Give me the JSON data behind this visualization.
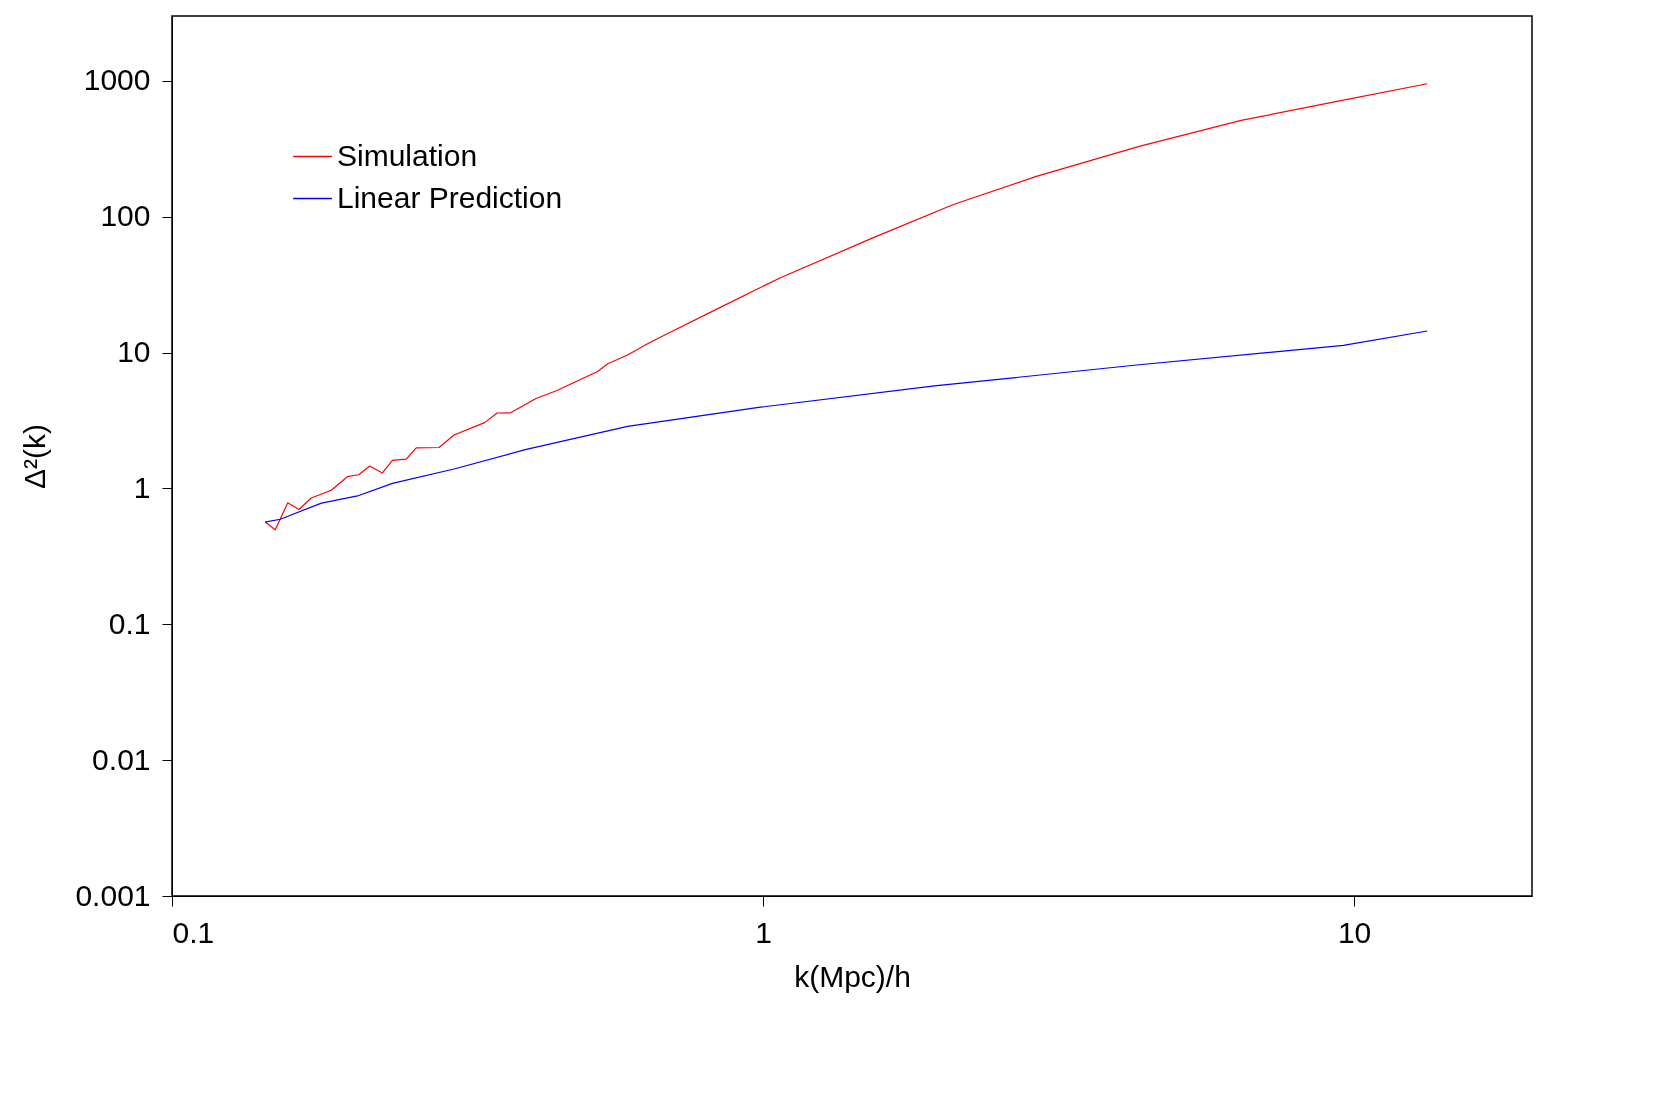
{
  "chart_data": {
    "type": "line",
    "xlabel": "k(Mpc)/h",
    "ylabel": "Δ²(k)",
    "log": "xy",
    "xlim": [
      0.1,
      20
    ],
    "ylim": [
      0.001,
      3000
    ],
    "xticks": [
      0.1,
      1,
      10
    ],
    "yticks": [
      0.001,
      0.01,
      0.1,
      1,
      10,
      100,
      1000
    ],
    "grid": false,
    "legend": "top left",
    "marker": "none",
    "line_style": "solid",
    "series": [
      {
        "name": "Simulation",
        "color": "#ff0000",
        "x": [
          0.1437,
          0.1495,
          0.157,
          0.164,
          0.172,
          0.186,
          0.198,
          0.207,
          0.216,
          0.227,
          0.236,
          0.249,
          0.259,
          0.283,
          0.3,
          0.338,
          0.355,
          0.374,
          0.413,
          0.447,
          0.525,
          0.546,
          0.59,
          0.64,
          0.694,
          0.845,
          0.99,
          1.07,
          1.53,
          2.1,
          2.9,
          4.33,
          6.44,
          9.59,
          13.3
        ],
        "values": [
          0.565,
          0.496,
          0.784,
          0.7,
          0.85,
          0.97,
          1.22,
          1.26,
          1.46,
          1.3,
          1.61,
          1.64,
          1.99,
          2.0,
          2.47,
          3.05,
          3.59,
          3.6,
          4.59,
          5.23,
          7.26,
          8.27,
          9.59,
          11.7,
          14.0,
          21.4,
          30.1,
          35.5,
          69.5,
          123,
          198,
          329,
          511,
          721,
          952
        ]
      },
      {
        "name": "Linear Prediction",
        "color": "#0000ff",
        "x": [
          0.1437,
          0.1525,
          0.179,
          0.206,
          0.236,
          0.3,
          0.396,
          0.59,
          0.99,
          1.95,
          4.33,
          9.59,
          13.3
        ],
        "values": [
          0.565,
          0.593,
          0.78,
          0.88,
          1.09,
          1.39,
          1.93,
          2.86,
          3.96,
          5.68,
          8.13,
          11.3,
          14.4
        ]
      }
    ]
  }
}
